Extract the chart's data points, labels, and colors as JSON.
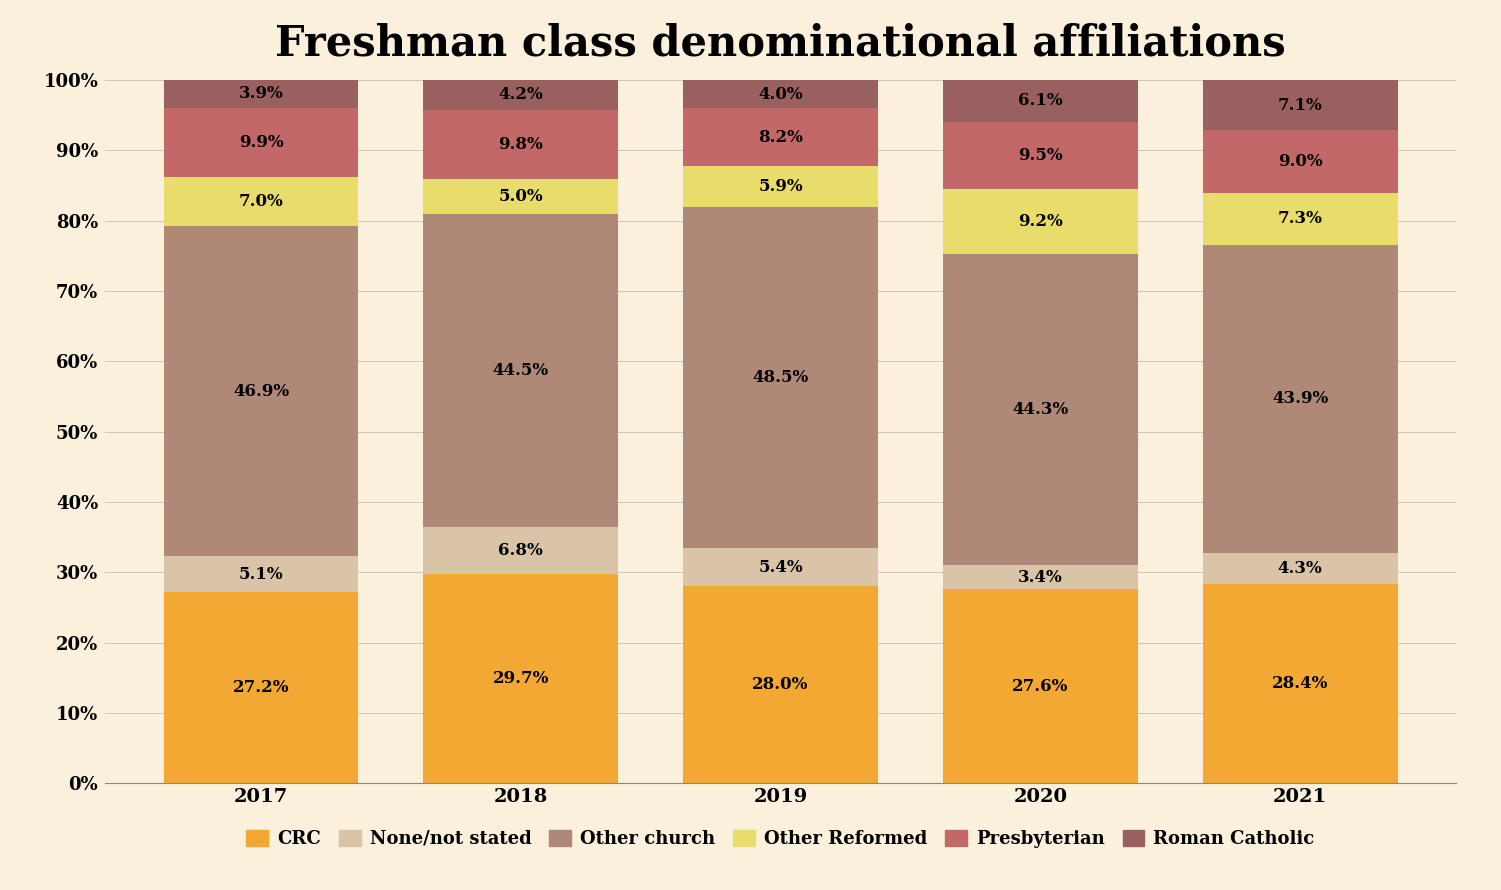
{
  "title": "Freshman class denominational affiliations",
  "years": [
    "2017",
    "2018",
    "2019",
    "2020",
    "2021"
  ],
  "categories": [
    "CRC",
    "None/not stated",
    "Other church",
    "Other Reformed",
    "Presbyterian",
    "Roman Catholic"
  ],
  "colors": [
    "#F2A832",
    "#D9C4A8",
    "#B08878",
    "#E8DC6A",
    "#C26868",
    "#9A6060"
  ],
  "values": {
    "CRC": [
      27.2,
      29.7,
      28.0,
      27.6,
      28.4
    ],
    "None/not stated": [
      5.1,
      6.8,
      5.4,
      3.4,
      4.3
    ],
    "Other church": [
      46.9,
      44.5,
      48.5,
      44.3,
      43.9
    ],
    "Other Reformed": [
      7.0,
      5.0,
      5.9,
      9.2,
      7.3
    ],
    "Presbyterian": [
      9.9,
      9.8,
      8.2,
      9.5,
      9.0
    ],
    "Roman Catholic": [
      3.9,
      4.2,
      4.0,
      6.1,
      7.1
    ]
  },
  "background_color": "#FAF0DC",
  "ylim": [
    0,
    100
  ],
  "yticks": [
    0,
    10,
    20,
    30,
    40,
    50,
    60,
    70,
    80,
    90,
    100
  ],
  "ytick_labels": [
    "0%",
    "10%",
    "20%",
    "30%",
    "40%",
    "50%",
    "60%",
    "70%",
    "80%",
    "90%",
    "100%"
  ],
  "title_fontsize": 30,
  "bar_width": 0.75,
  "label_fontsize": 12,
  "legend_fontsize": 13,
  "tick_fontsize": 13
}
